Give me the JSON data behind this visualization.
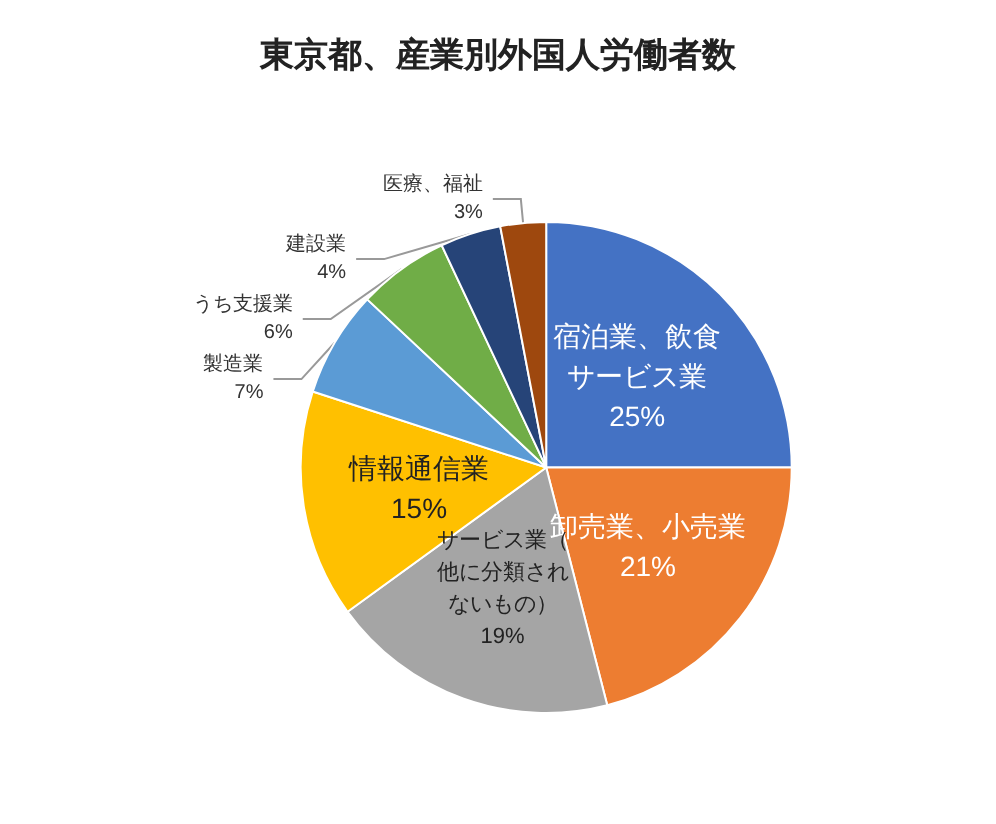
{
  "chart_data": {
    "type": "pie",
    "title": "東京都、産業別外国人労働者数",
    "categories": [
      "宿泊業、飲食サービス業",
      "卸売業、小売業",
      "サービス業（他に分類されないもの）",
      "情報通信業",
      "製造業",
      "うち支援業",
      "建設業",
      "医療、福祉"
    ],
    "value_labels": [
      "25%",
      "21%",
      "19%",
      "15%",
      "7%",
      "6%",
      "4%",
      "3%"
    ],
    "values": [
      25,
      21,
      19,
      15,
      7,
      6,
      4,
      3
    ],
    "colors": [
      "#4472c4",
      "#ed7d31",
      "#a5a5a5",
      "#ffc000",
      "#5b9bd5",
      "#70ad47",
      "#264478",
      "#9e480e"
    ],
    "legend": false
  }
}
